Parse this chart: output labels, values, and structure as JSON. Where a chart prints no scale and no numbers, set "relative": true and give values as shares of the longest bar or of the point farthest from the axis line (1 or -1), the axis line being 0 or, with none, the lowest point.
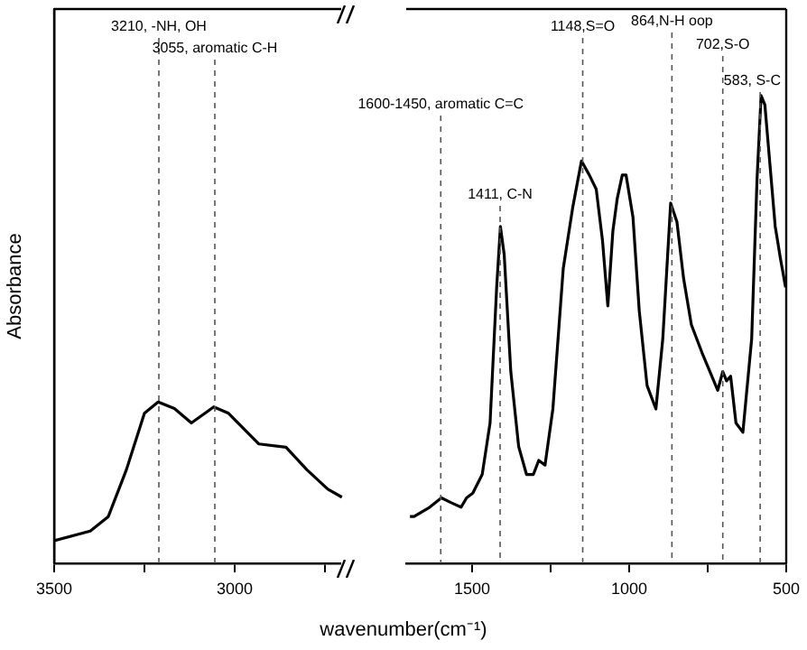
{
  "chart_data": [
    {
      "type": "line",
      "relative": true,
      "ylabel": "Absorbance",
      "grid": false,
      "legend": false,
      "marker": "none",
      "line_style": "solid",
      "xlim": [
        3500,
        2700
      ],
      "xticks": [
        3500,
        {
          "value": 3250,
          "label": null
        },
        3000,
        {
          "value": 2750,
          "label": null
        }
      ],
      "x": [
        3500,
        3400,
        3350,
        3300,
        3250,
        3212,
        3167,
        3120,
        3058,
        3017,
        2933,
        2858,
        2800,
        2742,
        2703
      ],
      "series": [
        {
          "color": "#000000",
          "values": [
            0.14,
            0.2,
            0.29,
            0.58,
            0.93,
            1,
            0.96,
            0.87,
            0.97,
            0.93,
            0.74,
            0.72,
            0.58,
            0.46,
            0.41
          ]
        }
      ],
      "ref_lines": [
        {
          "axis": "x",
          "value": 3210,
          "label": "3210, -NH, OH",
          "line_style": "dashed",
          "color": "#555555"
        },
        {
          "axis": "x",
          "value": 3055,
          "label": "3055, aromatic C-H",
          "line_style": "dashed",
          "color": "#555555"
        }
      ]
    },
    {
      "type": "line",
      "relative": true,
      "xlabel": "wavenumber(cm⁻¹)",
      "grid": false,
      "legend": false,
      "marker": "none",
      "line_style": "solid",
      "xlim": [
        1710,
        500
      ],
      "xticks": [
        1500,
        {
          "value": 1250,
          "label": null
        },
        1000,
        {
          "value": 750,
          "label": null
        },
        500
      ],
      "x": [
        1698,
        1685,
        1635,
        1598,
        1568,
        1535,
        1518,
        1498,
        1468,
        1443,
        1422,
        1410,
        1398,
        1377,
        1352,
        1327,
        1305,
        1288,
        1268,
        1243,
        1210,
        1180,
        1152,
        1127,
        1105,
        1085,
        1068,
        1052,
        1038,
        1022,
        1010,
        988,
        968,
        943,
        915,
        893,
        868,
        848,
        827,
        802,
        768,
        718,
        702,
        690,
        677,
        660,
        638,
        610,
        593,
        580,
        568,
        535,
        518,
        502
      ],
      "series": [
        {
          "color": "#000000",
          "values": [
            0.1,
            0.1,
            0.12,
            0.14,
            0.13,
            0.12,
            0.14,
            0.15,
            0.19,
            0.3,
            0.59,
            0.72,
            0.66,
            0.41,
            0.25,
            0.19,
            0.19,
            0.22,
            0.21,
            0.33,
            0.63,
            0.76,
            0.86,
            0.83,
            0.8,
            0.69,
            0.55,
            0.71,
            0.78,
            0.83,
            0.83,
            0.74,
            0.54,
            0.38,
            0.33,
            0.48,
            0.77,
            0.73,
            0.61,
            0.51,
            0.45,
            0.37,
            0.41,
            0.39,
            0.4,
            0.3,
            0.28,
            0.48,
            0.82,
            1,
            0.98,
            0.72,
            0.65,
            0.59
          ]
        }
      ],
      "ref_lines": [
        {
          "axis": "x",
          "value": 1600,
          "label": "1600-1450, aromatic C=C",
          "line_style": "dashed",
          "color": "#555555"
        },
        {
          "axis": "x",
          "value": 1411,
          "label": "1411, C-N",
          "line_style": "dashed",
          "color": "#555555"
        },
        {
          "axis": "x",
          "value": 1148,
          "label": "1148,S=O",
          "line_style": "dashed",
          "color": "#555555"
        },
        {
          "axis": "x",
          "value": 864,
          "label": "864,N-H oop",
          "line_style": "dashed",
          "color": "#555555"
        },
        {
          "axis": "x",
          "value": 702,
          "label": "702,S-O",
          "line_style": "dashed",
          "color": "#555555"
        },
        {
          "axis": "x",
          "value": 583,
          "label": "583, S-C",
          "line_style": "dashed",
          "color": "#555555"
        }
      ]
    }
  ]
}
